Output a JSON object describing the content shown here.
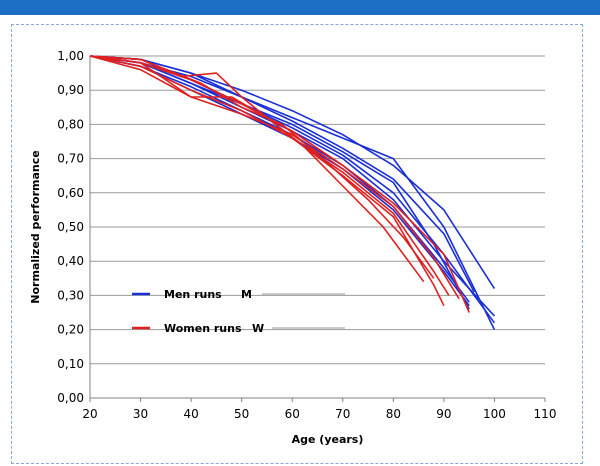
{
  "page": {
    "accent_color": "#1c6fc4"
  },
  "chart_data": {
    "type": "line",
    "xlabel": "Age (years)",
    "ylabel": "Normalized performance",
    "xlim": [
      20,
      110
    ],
    "ylim": [
      0,
      1
    ],
    "x_ticks": [
      "20",
      "30",
      "40",
      "50",
      "60",
      "70",
      "80",
      "90",
      "100",
      "110"
    ],
    "y_ticks": [
      "0,00",
      "0,10",
      "0,20",
      "0,30",
      "0,40",
      "0,50",
      "0,60",
      "0,70",
      "0,80",
      "0,90",
      "1,00"
    ],
    "grid": "horizontal",
    "legend": [
      {
        "label": "Men runs",
        "code": "M",
        "color": "#1a2fd6"
      },
      {
        "label": "Women runs",
        "code": "W",
        "color": "#e02020"
      }
    ],
    "series": [
      {
        "group": "M",
        "color": "#1a2fd6",
        "points": [
          [
            20,
            1.0
          ],
          [
            30,
            0.99
          ],
          [
            40,
            0.95
          ],
          [
            50,
            0.9
          ],
          [
            60,
            0.84
          ],
          [
            70,
            0.77
          ],
          [
            80,
            0.68
          ],
          [
            90,
            0.55
          ],
          [
            100,
            0.32
          ]
        ]
      },
      {
        "group": "M",
        "color": "#1a2fd6",
        "points": [
          [
            20,
            1.0
          ],
          [
            30,
            0.98
          ],
          [
            40,
            0.94
          ],
          [
            50,
            0.88
          ],
          [
            60,
            0.82
          ],
          [
            70,
            0.76
          ],
          [
            80,
            0.7
          ],
          [
            90,
            0.5
          ],
          [
            100,
            0.2
          ]
        ]
      },
      {
        "group": "M",
        "color": "#1a2fd6",
        "points": [
          [
            20,
            1.0
          ],
          [
            30,
            0.99
          ],
          [
            40,
            0.93
          ],
          [
            50,
            0.86
          ],
          [
            60,
            0.8
          ],
          [
            70,
            0.72
          ],
          [
            80,
            0.63
          ],
          [
            88,
            0.45
          ],
          [
            95,
            0.26
          ]
        ]
      },
      {
        "group": "M",
        "color": "#1a2fd6",
        "points": [
          [
            20,
            1.0
          ],
          [
            30,
            0.98
          ],
          [
            40,
            0.92
          ],
          [
            50,
            0.85
          ],
          [
            60,
            0.78
          ],
          [
            70,
            0.7
          ],
          [
            80,
            0.58
          ],
          [
            90,
            0.4
          ],
          [
            100,
            0.24
          ]
        ]
      },
      {
        "group": "M",
        "color": "#1a2fd6",
        "points": [
          [
            20,
            1.0
          ],
          [
            30,
            0.97
          ],
          [
            40,
            0.91
          ],
          [
            50,
            0.84
          ],
          [
            60,
            0.77
          ],
          [
            70,
            0.68
          ],
          [
            80,
            0.56
          ],
          [
            90,
            0.38
          ],
          [
            95,
            0.28
          ]
        ]
      },
      {
        "group": "M",
        "color": "#1a2fd6",
        "points": [
          [
            20,
            1.0
          ],
          [
            30,
            0.98
          ],
          [
            40,
            0.92
          ],
          [
            50,
            0.86
          ],
          [
            60,
            0.79
          ],
          [
            70,
            0.71
          ],
          [
            80,
            0.6
          ],
          [
            90,
            0.42
          ],
          [
            100,
            0.22
          ]
        ]
      },
      {
        "group": "M",
        "color": "#1a2fd6",
        "points": [
          [
            20,
            1.0
          ],
          [
            30,
            0.99
          ],
          [
            40,
            0.95
          ],
          [
            50,
            0.88
          ],
          [
            60,
            0.81
          ],
          [
            70,
            0.73
          ],
          [
            80,
            0.64
          ],
          [
            90,
            0.48
          ],
          [
            96,
            0.31
          ]
        ]
      },
      {
        "group": "M",
        "color": "#1a2fd6",
        "points": [
          [
            20,
            1.0
          ],
          [
            30,
            0.97
          ],
          [
            40,
            0.9
          ],
          [
            50,
            0.83
          ],
          [
            60,
            0.76
          ],
          [
            70,
            0.67
          ],
          [
            80,
            0.55
          ],
          [
            90,
            0.37
          ],
          [
            95,
            0.27
          ]
        ]
      },
      {
        "group": "W",
        "color": "#e02020",
        "points": [
          [
            20,
            1.0
          ],
          [
            30,
            0.99
          ],
          [
            38,
            0.94
          ],
          [
            45,
            0.95
          ],
          [
            50,
            0.88
          ],
          [
            60,
            0.76
          ],
          [
            70,
            0.65
          ],
          [
            80,
            0.53
          ],
          [
            88,
            0.33
          ],
          [
            90,
            0.27
          ]
        ]
      },
      {
        "group": "W",
        "color": "#e02020",
        "points": [
          [
            20,
            1.0
          ],
          [
            30,
            0.98
          ],
          [
            40,
            0.88
          ],
          [
            48,
            0.88
          ],
          [
            55,
            0.82
          ],
          [
            62,
            0.74
          ],
          [
            70,
            0.62
          ],
          [
            78,
            0.5
          ],
          [
            86,
            0.34
          ]
        ]
      },
      {
        "group": "W",
        "color": "#e02020",
        "points": [
          [
            20,
            1.0
          ],
          [
            30,
            0.97
          ],
          [
            40,
            0.9
          ],
          [
            50,
            0.84
          ],
          [
            60,
            0.76
          ],
          [
            70,
            0.66
          ],
          [
            80,
            0.54
          ],
          [
            88,
            0.37
          ],
          [
            91,
            0.3
          ]
        ]
      },
      {
        "group": "W",
        "color": "#e02020",
        "points": [
          [
            20,
            1.0
          ],
          [
            30,
            0.98
          ],
          [
            40,
            0.93
          ],
          [
            50,
            0.86
          ],
          [
            60,
            0.78
          ],
          [
            70,
            0.68
          ],
          [
            80,
            0.57
          ],
          [
            90,
            0.42
          ],
          [
            95,
            0.25
          ]
        ]
      },
      {
        "group": "W",
        "color": "#e02020",
        "points": [
          [
            20,
            1.0
          ],
          [
            30,
            0.99
          ],
          [
            42,
            0.92
          ],
          [
            50,
            0.85
          ],
          [
            58,
            0.8
          ],
          [
            66,
            0.7
          ],
          [
            75,
            0.58
          ],
          [
            82,
            0.47
          ],
          [
            88,
            0.35
          ]
        ]
      },
      {
        "group": "W",
        "color": "#e02020",
        "points": [
          [
            20,
            1.0
          ],
          [
            30,
            0.96
          ],
          [
            40,
            0.88
          ],
          [
            50,
            0.83
          ],
          [
            60,
            0.77
          ],
          [
            70,
            0.67
          ],
          [
            80,
            0.56
          ],
          [
            88,
            0.41
          ],
          [
            93,
            0.29
          ]
        ]
      }
    ]
  }
}
